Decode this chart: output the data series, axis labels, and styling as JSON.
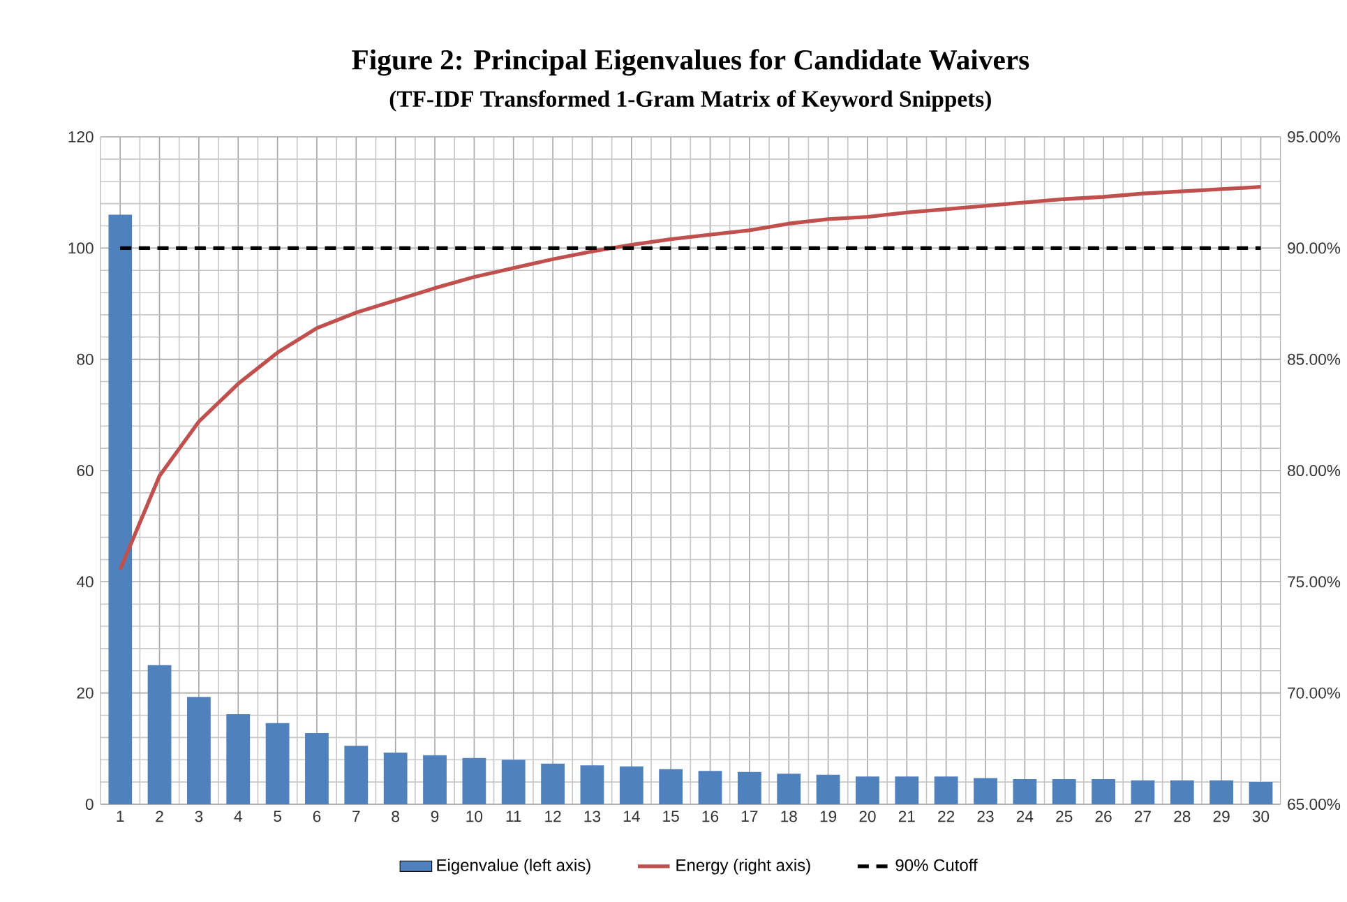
{
  "chart_data": {
    "type": "bar",
    "title": "Figure 2: Principal Eigenvalues for Candidate Waivers",
    "subtitle": "(TF-IDF Transformed 1-Gram Matrix of Keyword Snippets)",
    "categories": [
      "1",
      "2",
      "3",
      "4",
      "5",
      "6",
      "7",
      "8",
      "9",
      "10",
      "11",
      "12",
      "13",
      "14",
      "15",
      "16",
      "17",
      "18",
      "19",
      "20",
      "21",
      "22",
      "23",
      "24",
      "25",
      "26",
      "27",
      "28",
      "29",
      "30"
    ],
    "series": [
      {
        "name": "Eigenvalue (left axis)",
        "color": "#4f81bd",
        "values": [
          106,
          25,
          19.3,
          16.2,
          14.6,
          12.8,
          10.5,
          9.3,
          8.8,
          8.3,
          8.0,
          7.3,
          7.0,
          6.8,
          6.3,
          6.0,
          5.8,
          5.5,
          5.3,
          5.0,
          5.0,
          5.0,
          4.7,
          4.5,
          4.5,
          4.5,
          4.3,
          4.3,
          4.3,
          4.0
        ]
      },
      {
        "name": "Energy (right axis)",
        "type": "line",
        "axis": "y2",
        "color": "#c0504d",
        "values": [
          75.55,
          79.76,
          82.2,
          83.9,
          85.3,
          86.4,
          87.1,
          87.65,
          88.2,
          88.7,
          89.1,
          89.5,
          89.85,
          90.15,
          90.4,
          90.6,
          90.8,
          91.1,
          91.3,
          91.4,
          91.6,
          91.75,
          91.9,
          92.05,
          92.2,
          92.3,
          92.45,
          92.55,
          92.65,
          92.75
        ]
      }
    ],
    "ylim": [
      0,
      120
    ],
    "yticks": [
      0,
      20,
      40,
      60,
      80,
      100,
      120
    ],
    "y2lim": [
      65,
      95
    ],
    "y2ticks": [
      {
        "value": 65,
        "label": "65.00%"
      },
      {
        "value": 70,
        "label": "70.00%"
      },
      {
        "value": 75,
        "label": "75.00%"
      },
      {
        "value": 80,
        "label": "80.00%"
      },
      {
        "value": 85,
        "label": "85.00%"
      },
      {
        "value": 90,
        "label": "90.00%"
      },
      {
        "value": 95,
        "label": "95.00%"
      }
    ],
    "ref_lines": [
      {
        "axis": "y2",
        "value": 90,
        "label": "90% Cutoff",
        "color": "#000000",
        "line_style": "dashed"
      }
    ],
    "grid": true,
    "legend": "bottom"
  }
}
